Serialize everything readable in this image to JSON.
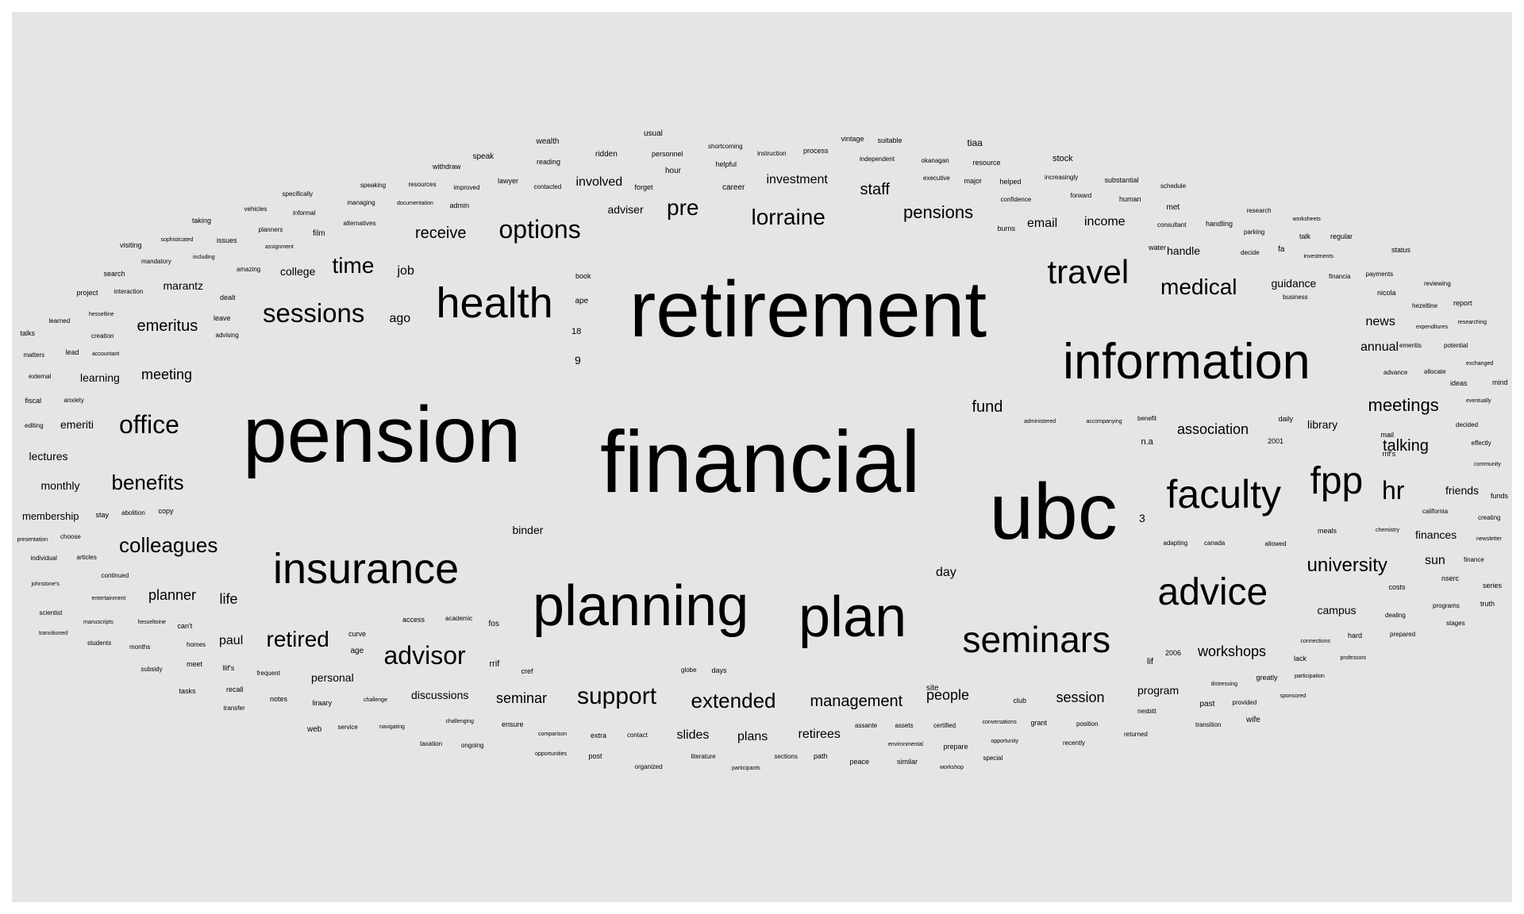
{
  "style": {
    "background": "#e5e5e5",
    "text_color": "#000000"
  },
  "words": [
    "retirement",
    "financial",
    "pension",
    "ubc",
    "information",
    "planning",
    "plan",
    "insurance",
    "health",
    "faculty",
    "advice",
    "seminars",
    "fpp",
    "travel",
    "sessions",
    "options",
    "medical",
    "lorraine",
    "office",
    "advisor",
    "time",
    "retired",
    "pre",
    "benefits",
    "colleagues",
    "support",
    "extended",
    "hr",
    "university",
    "staff",
    "pensions",
    "receive",
    "management",
    "talking",
    "meetings",
    "association",
    "seminar",
    "session",
    "people",
    "workshops",
    "emeritus",
    "meeting",
    "planner",
    "involved",
    "investment",
    "email",
    "income",
    "fund",
    "paul",
    "personal",
    "discussions",
    "slides",
    "plans",
    "retirees",
    "program",
    "guidance",
    "news",
    "annual",
    "job",
    "college",
    "marantz",
    "ago",
    "life",
    "emeriti",
    "lectures",
    "monthly",
    "membership",
    "learning",
    "binder",
    "day",
    "adviser",
    "handle",
    "campus",
    "sun",
    "finances",
    "friends",
    "library",
    "tiaa",
    "stock",
    "wealth",
    "usual",
    "speak",
    "ridden",
    "personnel",
    "shortcoming",
    "instruction",
    "process",
    "vintage",
    "suitable",
    "withdraw",
    "reading",
    "hour",
    "helpful",
    "independent",
    "okanagan",
    "resource",
    "executive",
    "major",
    "helped",
    "increasingly",
    "substantial",
    "schedule",
    "forward",
    "human",
    "specifically",
    "speaking",
    "resources",
    "improved",
    "lawyer",
    "contacted",
    "forget",
    "career",
    "confidence",
    "burns",
    "met",
    "consultant",
    "handling",
    "research",
    "worksheets",
    "regular",
    "informal",
    "vehicles",
    "managing",
    "documentation",
    "admin",
    "alternatives",
    "taking",
    "planners",
    "film",
    "water",
    "decide",
    "fa",
    "parking",
    "talk",
    "status",
    "visiting",
    "sophisticated",
    "issues",
    "including",
    "assignment",
    "investments",
    "payments",
    "reviewing",
    "mandatory",
    "search",
    "amazing",
    "book",
    "financia",
    "nicola",
    "report",
    "project",
    "interaction",
    "dealt",
    "ape",
    "business",
    "hezeltine",
    "researching",
    "learned",
    "hesseltine",
    "leave",
    "expenditures",
    "talks",
    "creation",
    "advising",
    "18",
    "emeritis",
    "potential",
    "matters",
    "lead",
    "accountant",
    "9",
    "exchanged",
    "external",
    "advance",
    "allocate",
    "ideas",
    "mind",
    "fiscal",
    "anxiety",
    "eventually",
    "editing",
    "administered",
    "accompanying",
    "benefit",
    "daily",
    "decided",
    "n.a",
    "mail",
    "effectly",
    "2001",
    "rrif's",
    "community",
    "stay",
    "abolition",
    "copy",
    "funds",
    "california",
    "creating",
    "presentation",
    "choose",
    "meals",
    "chemistry",
    "newsletter",
    "3",
    "adapting",
    "canada",
    "allowed",
    "individual",
    "articles",
    "finance",
    "continued",
    "costs",
    "nserc",
    "series",
    "johnstone's",
    "entertainment",
    "programs",
    "truth",
    "scientist",
    "dealing",
    "stages",
    "manuscripts",
    "hesseltoine",
    "can't",
    "access",
    "academic",
    "fos",
    "transitioned",
    "prepared",
    "hard",
    "months",
    "homes",
    "connections",
    "students",
    "curve",
    "age",
    "lif",
    "2006",
    "lack",
    "professors",
    "subsidy",
    "meet",
    "llif's",
    "rrif",
    "cref",
    "globe",
    "days",
    "participation",
    "frequent",
    "greatly",
    "distressing",
    "tasks",
    "recall",
    "site",
    "sponsored",
    "notes",
    "liraary",
    "challenge",
    "club",
    "past",
    "provided",
    "transfer",
    "certified",
    "nesbitt",
    "assante",
    "assets",
    "conversations",
    "grant",
    "position",
    "web",
    "service",
    "navigating",
    "challenging",
    "ensure",
    "transition",
    "wife",
    "comparison",
    "extra",
    "contact",
    "returned",
    "taxation",
    "ongoing",
    "opportunity",
    "recently",
    "environmental",
    "prepare",
    "opportunities",
    "post",
    "literature",
    "sections",
    "path",
    "special",
    "organized",
    "participants",
    "peace",
    "similar",
    "workshop"
  ]
}
